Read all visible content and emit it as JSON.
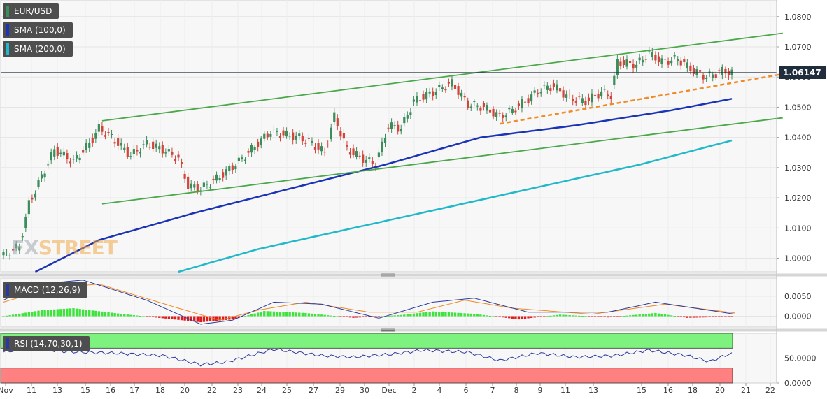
{
  "watermark": {
    "prefix": "FX",
    "suffix": "STREET"
  },
  "indicators": {
    "price": {
      "label": "EUR/USD",
      "color": "#3c8d5c"
    },
    "sma100": {
      "label": "SMA (100,0)",
      "color": "#1b33b5"
    },
    "sma200": {
      "label": "SMA (200,0)",
      "color": "#21b9c9"
    },
    "macd": {
      "label": "MACD (12,26,9)",
      "color": "#2a3a9c"
    },
    "rsi": {
      "label": "RSI (14,70,30,1)",
      "color": "#2a3a9c"
    }
  },
  "current_price": "1.06147",
  "chart_data": [
    {
      "type": "candlestick",
      "title": "EUR/USD",
      "x_tick_labels": [
        "Nov",
        "11",
        "13",
        "15",
        "16",
        "17",
        "18",
        "20",
        "22",
        "23",
        "24",
        "25",
        "27",
        "29",
        "30",
        "Dec",
        "2",
        "4",
        "6",
        "7",
        "8",
        "9",
        "11",
        "13",
        "15",
        "16",
        "18",
        "20",
        "21",
        "22"
      ],
      "y_tick_labels": [
        "1.0800",
        "1.0700",
        "1.0600",
        "1.0500",
        "1.0400",
        "1.0300",
        "1.0200",
        "1.0100",
        "1.0000"
      ],
      "ylim": [
        0.9955,
        1.0855
      ],
      "current_price": 1.06147,
      "price_path": [
        [
          0,
          1.001
        ],
        [
          5,
          1.004
        ],
        [
          8,
          1.018
        ],
        [
          12,
          1.027
        ],
        [
          16,
          1.036
        ],
        [
          22,
          1.032
        ],
        [
          27,
          1.038
        ],
        [
          30,
          1.043
        ],
        [
          34,
          1.04
        ],
        [
          40,
          1.034
        ],
        [
          45,
          1.038
        ],
        [
          50,
          1.036
        ],
        [
          55,
          1.033
        ],
        [
          58,
          1.024
        ],
        [
          62,
          1.023
        ],
        [
          68,
          1.027
        ],
        [
          74,
          1.032
        ],
        [
          80,
          1.038
        ],
        [
          84,
          1.042
        ],
        [
          88,
          1.041
        ],
        [
          93,
          1.04
        ],
        [
          97,
          1.038
        ],
        [
          101,
          1.035
        ],
        [
          104,
          1.047
        ],
        [
          108,
          1.036
        ],
        [
          113,
          1.033
        ],
        [
          117,
          1.031
        ],
        [
          121,
          1.044
        ],
        [
          125,
          1.043
        ],
        [
          129,
          1.052
        ],
        [
          133,
          1.054
        ],
        [
          137,
          1.056
        ],
        [
          141,
          1.058
        ],
        [
          146,
          1.051
        ],
        [
          151,
          1.05
        ],
        [
          156,
          1.047
        ],
        [
          160,
          1.049
        ],
        [
          164,
          1.052
        ],
        [
          169,
          1.056
        ],
        [
          173,
          1.057
        ],
        [
          178,
          1.053
        ],
        [
          183,
          1.052
        ],
        [
          188,
          1.055
        ],
        [
          191,
          1.054
        ],
        [
          193,
          1.065
        ],
        [
          199,
          1.064
        ],
        [
          203,
          1.068
        ],
        [
          207,
          1.065
        ],
        [
          212,
          1.066
        ],
        [
          217,
          1.062
        ],
        [
          221,
          1.06
        ],
        [
          226,
          1.062
        ],
        [
          229,
          1.0615
        ]
      ],
      "n_candles": 230,
      "sma100": [
        [
          10,
          0.9955
        ],
        [
          30,
          1.006
        ],
        [
          60,
          1.015
        ],
        [
          90,
          1.023
        ],
        [
          120,
          1.031
        ],
        [
          150,
          1.04
        ],
        [
          180,
          1.044
        ],
        [
          210,
          1.049
        ],
        [
          229,
          1.0528
        ]
      ],
      "sma200": [
        [
          55,
          0.9955
        ],
        [
          80,
          1.003
        ],
        [
          110,
          1.01
        ],
        [
          140,
          1.017
        ],
        [
          170,
          1.024
        ],
        [
          200,
          1.031
        ],
        [
          229,
          1.039
        ]
      ],
      "trend_lines": [
        {
          "style": "solid",
          "color": "#4aa84a",
          "from": [
            31,
            1.0455
          ],
          "to": [
            245,
            1.0745
          ]
        },
        {
          "style": "solid",
          "color": "#4aa84a",
          "from": [
            31,
            1.018
          ],
          "to": [
            245,
            1.0465
          ]
        },
        {
          "style": "dashed",
          "color": "#f08a24",
          "from": [
            156,
            1.0445
          ],
          "to": [
            245,
            1.061
          ]
        }
      ]
    },
    {
      "type": "line",
      "title": "MACD (12,26,9)",
      "y_tick_labels": [
        "0.0050",
        "0.0000"
      ],
      "ylim": [
        -0.0027,
        0.0095
      ],
      "macd": [
        [
          0,
          0.004
        ],
        [
          10,
          0.008
        ],
        [
          25,
          0.009
        ],
        [
          45,
          0.004
        ],
        [
          62,
          -0.002
        ],
        [
          72,
          -0.001
        ],
        [
          85,
          0.0035
        ],
        [
          100,
          0.003
        ],
        [
          118,
          -0.0005
        ],
        [
          135,
          0.0035
        ],
        [
          148,
          0.0045
        ],
        [
          165,
          0.001
        ],
        [
          190,
          0.001
        ],
        [
          205,
          0.0035
        ],
        [
          230,
          0.0005
        ]
      ],
      "signal": [
        [
          0,
          0.0035
        ],
        [
          15,
          0.007
        ],
        [
          30,
          0.008
        ],
        [
          55,
          0.002
        ],
        [
          68,
          -0.001
        ],
        [
          80,
          0.0015
        ],
        [
          95,
          0.0035
        ],
        [
          115,
          0.001
        ],
        [
          130,
          0.001
        ],
        [
          145,
          0.004
        ],
        [
          160,
          0.002
        ],
        [
          185,
          0.0005
        ],
        [
          208,
          0.003
        ],
        [
          230,
          0.0008
        ]
      ],
      "histogram": [
        [
          0,
          0.0
        ],
        [
          12,
          0.0015
        ],
        [
          22,
          0.002
        ],
        [
          38,
          0.0005
        ],
        [
          50,
          -0.0005
        ],
        [
          62,
          -0.0015
        ],
        [
          72,
          -0.0008
        ],
        [
          82,
          0.0013
        ],
        [
          95,
          0.0008
        ],
        [
          110,
          -0.0004
        ],
        [
          125,
          0.0003
        ],
        [
          135,
          0.0012
        ],
        [
          148,
          0.0006
        ],
        [
          162,
          -0.0008
        ],
        [
          175,
          0.0004
        ],
        [
          190,
          -0.0003
        ],
        [
          205,
          0.0008
        ],
        [
          215,
          -0.0004
        ],
        [
          230,
          -0.0001
        ]
      ]
    },
    {
      "type": "line",
      "title": "RSI (14,70,30,1)",
      "y_tick_labels": [
        "50.0000",
        "0.0000"
      ],
      "ylim": [
        0,
        100
      ],
      "overbought": 70,
      "oversold": 30,
      "rsi": [
        [
          0,
          62
        ],
        [
          8,
          70
        ],
        [
          20,
          63
        ],
        [
          35,
          60
        ],
        [
          50,
          55
        ],
        [
          62,
          37
        ],
        [
          70,
          42
        ],
        [
          85,
          68
        ],
        [
          100,
          55
        ],
        [
          110,
          52
        ],
        [
          122,
          58
        ],
        [
          132,
          66
        ],
        [
          146,
          62
        ],
        [
          156,
          45
        ],
        [
          168,
          60
        ],
        [
          180,
          52
        ],
        [
          192,
          55
        ],
        [
          203,
          66
        ],
        [
          215,
          55
        ],
        [
          222,
          43
        ],
        [
          228,
          58
        ]
      ],
      "x_tick_labels": [
        "Nov",
        "11",
        "13",
        "15",
        "16",
        "17",
        "18",
        "20",
        "22",
        "23",
        "24",
        "25",
        "27",
        "29",
        "30",
        "Dec",
        "2",
        "4",
        "6",
        "7",
        "8",
        "9",
        "11",
        "13",
        "15",
        "16",
        "18",
        "20",
        "21",
        "22"
      ]
    }
  ]
}
